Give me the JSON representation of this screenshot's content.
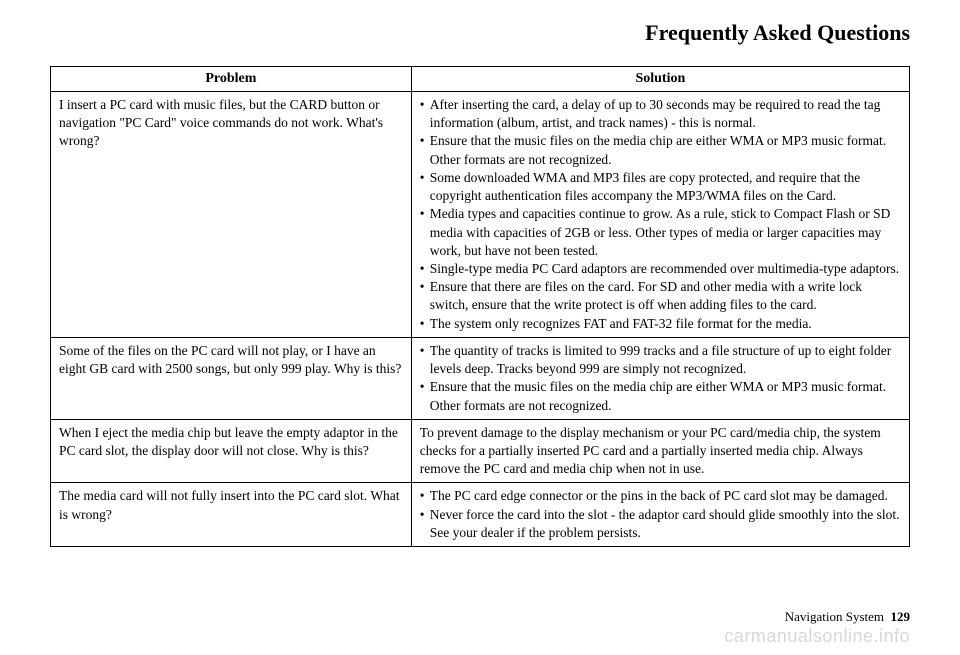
{
  "page_title": "Frequently Asked Questions",
  "table": {
    "headers": {
      "problem": "Problem",
      "solution": "Solution"
    },
    "rows": [
      {
        "problem": "I insert a PC card with music files, but the CARD button or navigation \"PC Card\" voice commands do not work. What's wrong?",
        "solution_items": [
          "After inserting the card, a delay of up to 30 seconds may be required to read the tag information (album, artist, and track names) - this is normal.",
          "Ensure that the music files on the media chip are either WMA or MP3 music format. Other formats are not recognized.",
          "Some downloaded WMA and MP3 files are copy protected, and require that the copyright authentication files accompany the MP3/WMA files on the Card.",
          "Media types and capacities continue to grow. As a rule, stick to Compact Flash or SD media with capacities of 2GB or less. Other types of media or larger capacities may work, but have not been tested.",
          "Single-type media PC Card adaptors are recommended over multimedia-type adaptors.",
          "Ensure that there are files on the card. For SD and other media with a write lock switch, ensure that the write protect is off when adding files to the card.",
          "The system only recognizes FAT and FAT-32 file format for the media."
        ]
      },
      {
        "problem": "Some of the files on the PC card will not play, or I have an eight GB card with 2500 songs, but only 999 play. Why is this?",
        "solution_items": [
          "The quantity of tracks is limited to 999 tracks and a file structure of up to eight folder levels deep. Tracks beyond 999 are simply not recognized.",
          "Ensure that the music files on the media chip are either WMA or MP3 music format. Other formats are not recognized."
        ]
      },
      {
        "problem": "When I eject the media chip but leave the empty adaptor in the PC card slot, the display door will not close. Why is this?",
        "solution_text": "To prevent damage to the display mechanism or your PC card/media chip, the system checks for a partially inserted PC card and a partially inserted media chip. Always remove the PC card and media chip when not in use."
      },
      {
        "problem": "The media card will not fully insert into the PC card slot. What is wrong?",
        "solution_items": [
          "The PC card edge connector or the pins in the back of PC card slot may be damaged.",
          "Never force the card into the slot - the adaptor card should glide smoothly into the slot. See your dealer if the problem persists."
        ]
      }
    ]
  },
  "footer": {
    "section": "Navigation System",
    "page_number": "129"
  },
  "watermark": "carmanualsonline.info"
}
